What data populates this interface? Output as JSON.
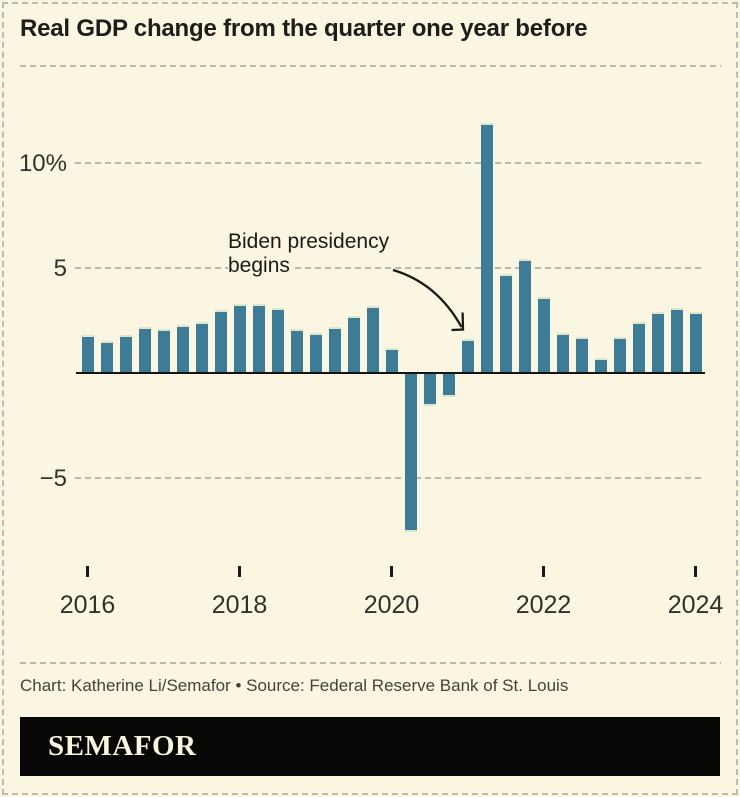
{
  "header": {
    "title": "Real GDP change from the quarter one year before"
  },
  "chart_data": {
    "type": "bar",
    "title": "Real GDP change from the quarter one year before",
    "unit": "percent",
    "x": [
      "Q1 2016",
      "Q2 2016",
      "Q3 2016",
      "Q4 2016",
      "Q1 2017",
      "Q2 2017",
      "Q3 2017",
      "Q4 2017",
      "Q1 2018",
      "Q2 2018",
      "Q3 2018",
      "Q4 2018",
      "Q1 2019",
      "Q2 2019",
      "Q3 2019",
      "Q4 2019",
      "Q1 2020",
      "Q2 2020",
      "Q3 2020",
      "Q4 2020",
      "Q1 2021",
      "Q2 2021",
      "Q3 2021",
      "Q4 2021",
      "Q1 2022",
      "Q2 2022",
      "Q3 2022",
      "Q4 2022",
      "Q1 2023",
      "Q2 2023",
      "Q3 2023",
      "Q4 2023",
      "Q1 2024"
    ],
    "values": [
      1.8,
      1.5,
      1.8,
      2.2,
      2.1,
      2.3,
      2.4,
      3.0,
      3.3,
      3.3,
      3.1,
      2.1,
      1.9,
      2.2,
      2.7,
      3.2,
      1.2,
      -7.5,
      -1.5,
      -1.1,
      1.6,
      11.9,
      4.7,
      5.4,
      3.6,
      1.9,
      1.7,
      0.7,
      1.7,
      2.4,
      2.9,
      3.1,
      2.9
    ],
    "ylim": [
      -8.5,
      13
    ],
    "grid": "dashed-horizontal",
    "gridlines": [
      {
        "value": 10,
        "label": "10%"
      },
      {
        "value": 5,
        "label": "5"
      },
      {
        "value": -5,
        "label": "−5"
      }
    ],
    "x_ticks": [
      {
        "label": "2016",
        "index": 0
      },
      {
        "label": "2018",
        "index": 8
      },
      {
        "label": "2020",
        "index": 16
      },
      {
        "label": "2022",
        "index": 24
      },
      {
        "label": "2024",
        "index": 32
      }
    ],
    "annotation": {
      "line1": "Biden presidency",
      "line2": "begins",
      "points_to": "Q1 2021"
    },
    "legend": "none",
    "xlabel": "",
    "ylabel": ""
  },
  "footer": {
    "credit": "Chart: Katherine Li/Semafor • Source: Federal Reserve Bank of St. Louis",
    "logo": "SEMAFOR"
  },
  "colors": {
    "background": "#faf6e1",
    "bar": "#3d7c96",
    "bar_cap": "#dbe6cd",
    "axis": "#141412",
    "gridline": "#b9b9ae",
    "text": "#1d1d1a",
    "logo_background": "#070705",
    "logo_text": "#f8f4de"
  }
}
